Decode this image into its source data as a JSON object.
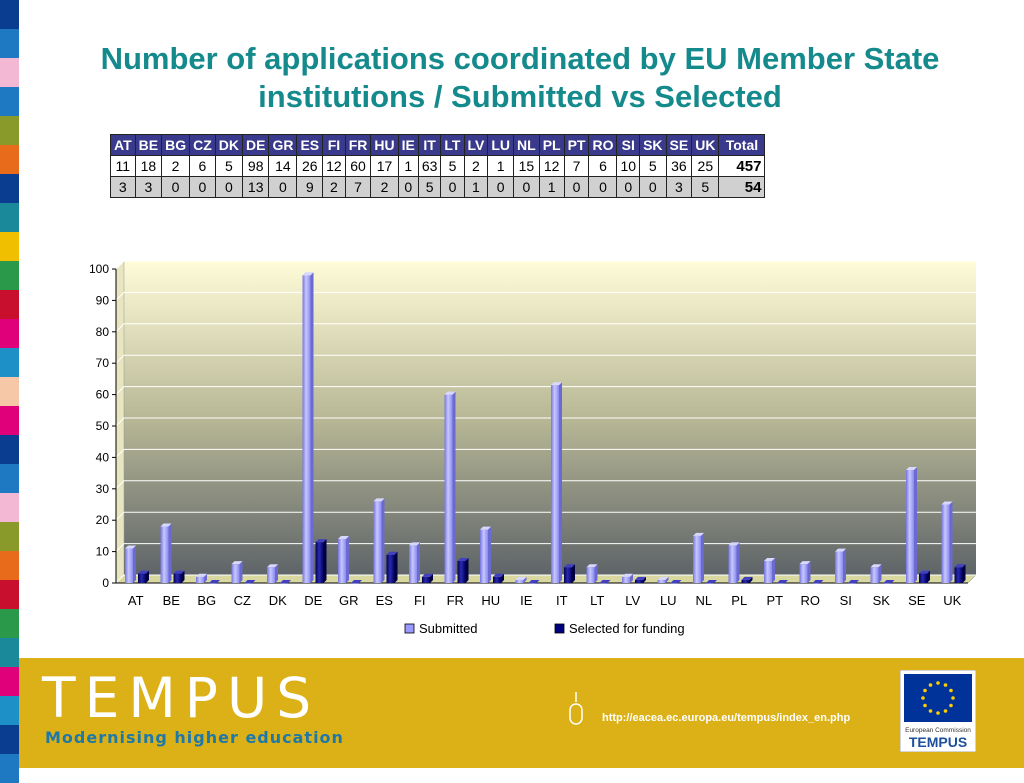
{
  "slide": {
    "title": "Number of applications coordinated by EU Member State institutions / Submitted vs Selected"
  },
  "table": {
    "headers": [
      "AT",
      "BE",
      "BG",
      "CZ",
      "DK",
      "DE",
      "GR",
      "ES",
      "FI",
      "FR",
      "HU",
      "IE",
      "IT",
      "LT",
      "LV",
      "LU",
      "NL",
      "PL",
      "PT",
      "RO",
      "SI",
      "SK",
      "SE",
      "UK",
      "Total"
    ],
    "rows": [
      [
        "11",
        "18",
        "2",
        "6",
        "5",
        "98",
        "14",
        "26",
        "12",
        "60",
        "17",
        "1",
        "63",
        "5",
        "2",
        "1",
        "15",
        "12",
        "7",
        "6",
        "10",
        "5",
        "36",
        "25",
        "457"
      ],
      [
        "3",
        "3",
        "0",
        "0",
        "0",
        "13",
        "0",
        "9",
        "2",
        "7",
        "2",
        "0",
        "5",
        "0",
        "1",
        "0",
        "0",
        "1",
        "0",
        "0",
        "0",
        "0",
        "3",
        "5",
        "54"
      ]
    ]
  },
  "chart_data": {
    "type": "bar",
    "categories": [
      "AT",
      "BE",
      "BG",
      "CZ",
      "DK",
      "DE",
      "GR",
      "ES",
      "FI",
      "FR",
      "HU",
      "IE",
      "IT",
      "LT",
      "LV",
      "LU",
      "NL",
      "PL",
      "PT",
      "RO",
      "SI",
      "SK",
      "SE",
      "UK"
    ],
    "series": [
      {
        "name": "Submitted",
        "values": [
          11,
          18,
          2,
          6,
          5,
          98,
          14,
          26,
          12,
          60,
          17,
          1,
          63,
          5,
          2,
          1,
          15,
          12,
          7,
          6,
          10,
          5,
          36,
          25
        ],
        "color": "#9999ff"
      },
      {
        "name": "Selected for funding",
        "values": [
          3,
          3,
          0,
          0,
          0,
          13,
          0,
          9,
          2,
          7,
          2,
          0,
          5,
          0,
          1,
          0,
          0,
          1,
          0,
          0,
          0,
          0,
          3,
          5
        ],
        "color": "#000080"
      }
    ],
    "ylim": [
      0,
      100
    ],
    "yticks": [
      0,
      10,
      20,
      30,
      40,
      50,
      60,
      70,
      80,
      90,
      100
    ],
    "grid": true,
    "legend": "bottom",
    "style": "3d"
  },
  "footer": {
    "logo_text": "TEMPUS",
    "tagline": "Modernising higher education",
    "url": "http://eacea.ec.europa.eu/tempus/index_en.php",
    "ec_logo_line1": "European Commission",
    "ec_logo_line2": "TEMPUS"
  },
  "colors": {
    "title": "#158a8c",
    "footer": "#dcb118",
    "table_header": "#3a3a8c"
  }
}
